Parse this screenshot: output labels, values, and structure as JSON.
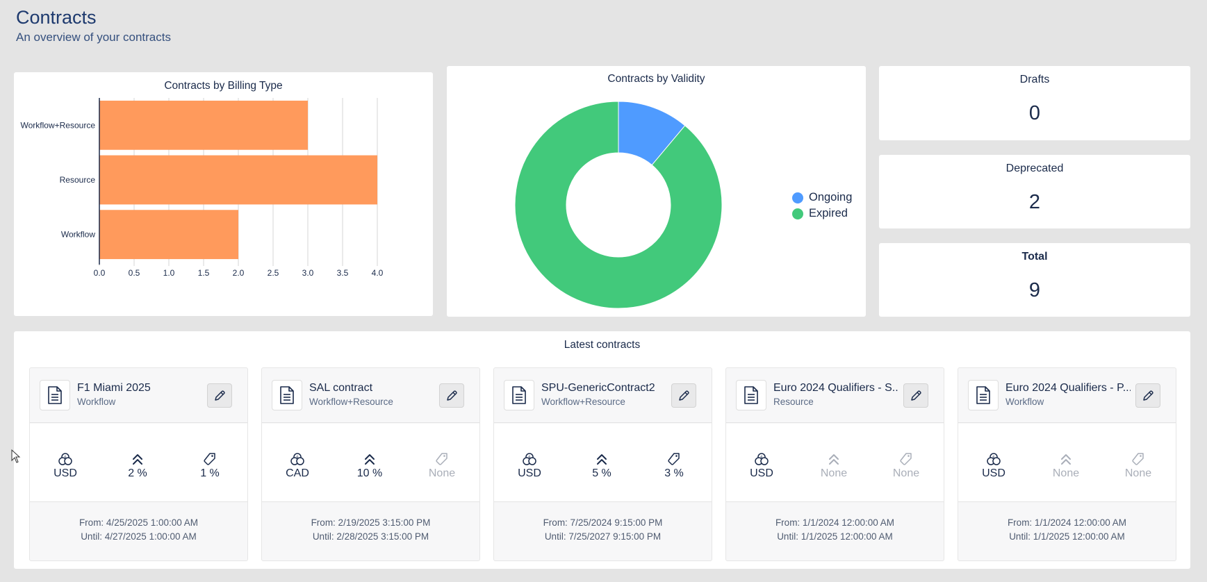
{
  "page": {
    "title": "Contracts",
    "subtitle": "An overview of your contracts"
  },
  "billing_chart": {
    "title": "Contracts by Billing Type"
  },
  "validity_chart": {
    "title": "Contracts by Validity"
  },
  "chart_data": [
    {
      "type": "bar",
      "orientation": "horizontal",
      "title": "Contracts by Billing Type",
      "categories": [
        "Workflow+Resource",
        "Resource",
        "Workflow"
      ],
      "values": [
        3,
        4,
        2
      ],
      "xlim": [
        0,
        4
      ],
      "xticks": [
        "0.0",
        "0.5",
        "1.0",
        "1.5",
        "2.0",
        "2.5",
        "3.0",
        "3.5",
        "4.0"
      ],
      "grid": true,
      "color": "#ff9a5c"
    },
    {
      "type": "pie",
      "donut": true,
      "title": "Contracts by Validity",
      "labels": [
        "Ongoing",
        "Expired"
      ],
      "values": [
        1,
        8
      ],
      "colors": [
        "#4f9bff",
        "#42c97b"
      ],
      "legend": "right"
    }
  ],
  "stats": {
    "drafts": {
      "label": "Drafts",
      "value": "0"
    },
    "deprecated": {
      "label": "Deprecated",
      "value": "2"
    },
    "total": {
      "label": "Total",
      "value": "9"
    }
  },
  "latest": {
    "title": "Latest contracts",
    "contracts": [
      {
        "name": "F1 Miami 2025",
        "type": "Workflow",
        "currency": "USD",
        "increase": "2 %",
        "discount": "1 %",
        "from": "From: 4/25/2025 1:00:00 AM",
        "until": "Until: 4/27/2025 1:00:00 AM"
      },
      {
        "name": "SAL contract",
        "type": "Workflow+Resource",
        "currency": "CAD",
        "increase": "10 %",
        "discount": "None",
        "from": "From: 2/19/2025 3:15:00 PM",
        "until": "Until: 2/28/2025 3:15:00 PM"
      },
      {
        "name": "SPU-GenericContract2",
        "type": "Workflow+Resource",
        "currency": "USD",
        "increase": "5 %",
        "discount": "3 %",
        "from": "From: 7/25/2024 9:15:00 PM",
        "until": "Until: 7/25/2027 9:15:00 PM"
      },
      {
        "name": "Euro 2024 Qualifiers - S...",
        "type": "Resource",
        "currency": "USD",
        "increase": "None",
        "discount": "None",
        "from": "From: 1/1/2024 12:00:00 AM",
        "until": "Until: 1/1/2025 12:00:00 AM"
      },
      {
        "name": "Euro 2024 Qualifiers - P...",
        "type": "Workflow",
        "currency": "USD",
        "increase": "None",
        "discount": "None",
        "from": "From: 1/1/2024 12:00:00 AM",
        "until": "Until: 1/1/2025 12:00:00 AM"
      }
    ]
  },
  "icons": {
    "document": "document-icon",
    "edit": "pencil-icon",
    "currency": "coins-icon",
    "increase": "double-chevron-up-icon",
    "discount": "tag-icon",
    "cursor": "mouse-pointer-icon"
  }
}
